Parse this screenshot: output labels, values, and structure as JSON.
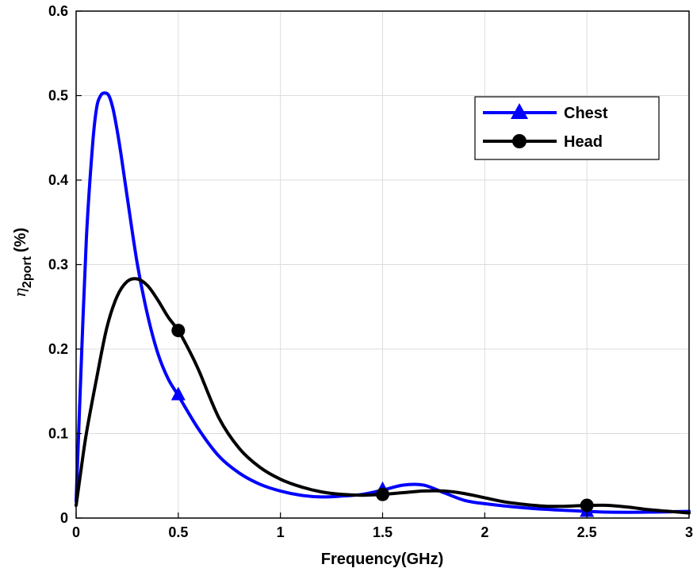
{
  "chart_data": {
    "type": "line",
    "xlabel": "Frequency(GHz)",
    "ylabel_symbol": "η",
    "ylabel_subscript": "2port",
    "ylabel_unit": "(%)",
    "xlim": [
      0,
      3
    ],
    "ylim": [
      0,
      0.6
    ],
    "xticks": [
      0,
      0.5,
      1,
      1.5,
      2,
      2.5,
      3
    ],
    "xtick_labels": [
      "0",
      "0.5",
      "1",
      "1.5",
      "2",
      "2.5",
      "3"
    ],
    "yticks": [
      0,
      0.1,
      0.2,
      0.3,
      0.4,
      0.5,
      0.6
    ],
    "ytick_labels": [
      "0",
      "0.1",
      "0.2",
      "0.3",
      "0.4",
      "0.5",
      "0.6"
    ],
    "grid": true,
    "legend_position": "top-right",
    "series": [
      {
        "name": "Chest",
        "color": "#0000ff",
        "marker": "triangle",
        "x": [
          0,
          0.02,
          0.05,
          0.08,
          0.1,
          0.12,
          0.14,
          0.16,
          0.18,
          0.2,
          0.22,
          0.25,
          0.3,
          0.35,
          0.4,
          0.45,
          0.5,
          0.6,
          0.7,
          0.8,
          0.9,
          1.0,
          1.1,
          1.2,
          1.3,
          1.4,
          1.5,
          1.6,
          1.7,
          1.8,
          1.9,
          2.0,
          2.2,
          2.4,
          2.5,
          2.6,
          2.8,
          3.0
        ],
        "y": [
          0.02,
          0.15,
          0.33,
          0.44,
          0.485,
          0.5,
          0.503,
          0.5,
          0.485,
          0.46,
          0.43,
          0.38,
          0.3,
          0.24,
          0.195,
          0.165,
          0.145,
          0.105,
          0.073,
          0.053,
          0.04,
          0.032,
          0.027,
          0.025,
          0.026,
          0.028,
          0.033,
          0.039,
          0.039,
          0.03,
          0.021,
          0.017,
          0.012,
          0.009,
          0.008,
          0.007,
          0.007,
          0.008
        ],
        "marker_x": [
          0.5,
          1.5,
          2.5
        ],
        "marker_y": [
          0.146,
          0.034,
          0.008
        ]
      },
      {
        "name": "Head",
        "color": "#000000",
        "marker": "circle",
        "x": [
          0,
          0.02,
          0.05,
          0.1,
          0.15,
          0.2,
          0.25,
          0.3,
          0.35,
          0.4,
          0.45,
          0.5,
          0.55,
          0.6,
          0.7,
          0.8,
          0.9,
          1.0,
          1.1,
          1.2,
          1.3,
          1.4,
          1.5,
          1.6,
          1.7,
          1.8,
          1.9,
          2.0,
          2.1,
          2.2,
          2.3,
          2.4,
          2.5,
          2.6,
          2.7,
          2.8,
          2.9,
          3.0
        ],
        "y": [
          0.015,
          0.05,
          0.1,
          0.165,
          0.225,
          0.262,
          0.28,
          0.283,
          0.275,
          0.258,
          0.238,
          0.222,
          0.2,
          0.175,
          0.118,
          0.082,
          0.06,
          0.046,
          0.037,
          0.031,
          0.028,
          0.027,
          0.028,
          0.03,
          0.032,
          0.032,
          0.029,
          0.024,
          0.019,
          0.016,
          0.014,
          0.014,
          0.015,
          0.015,
          0.013,
          0.01,
          0.008,
          0.006
        ],
        "marker_x": [
          0.5,
          1.5,
          2.5
        ],
        "marker_y": [
          0.222,
          0.028,
          0.015
        ]
      }
    ]
  }
}
